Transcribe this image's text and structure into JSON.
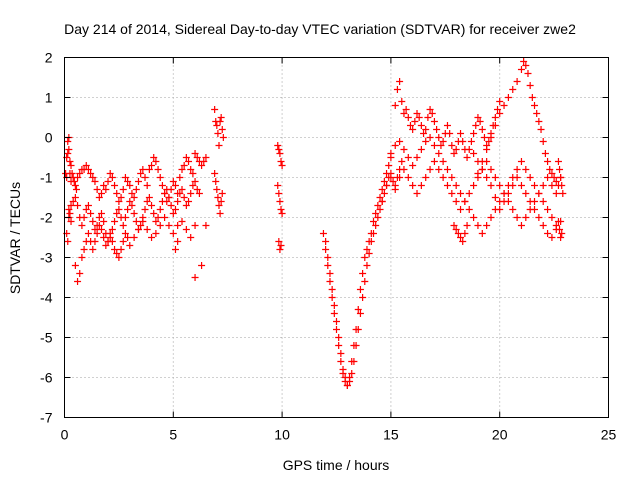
{
  "chart_data": {
    "type": "scatter",
    "title": "Day 214 of 2014, Sidereal Day-to-day VTEC variation (SDTVAR) for receiver zwe2",
    "xlabel": "GPS time / hours",
    "ylabel": "SDTVAR / TECUs",
    "xlim": [
      0,
      25
    ],
    "ylim": [
      -7,
      2
    ],
    "x_ticks": [
      0,
      5,
      10,
      15,
      20,
      25
    ],
    "y_ticks": [
      -7,
      -6,
      -5,
      -4,
      -3,
      -2,
      -1,
      0,
      1,
      2
    ],
    "x_tick_labels": [
      "0",
      "5",
      "10",
      "15",
      "20",
      "25"
    ],
    "y_tick_labels": [
      "-7",
      "-6",
      "-5",
      "-4",
      "-3",
      "-2",
      "-1",
      "0",
      "1",
      "2"
    ],
    "grid": true,
    "marker": "+",
    "color": "#ff0000",
    "series": [
      {
        "name": "zwe2",
        "x": [
          0.05,
          0.1,
          0.15,
          0.2,
          0.25,
          0.3,
          0.35,
          0.4,
          0.45,
          0.5,
          0.55,
          0.6,
          0.7,
          0.8,
          0.9,
          1.0,
          1.1,
          1.2,
          1.3,
          1.4,
          1.5,
          1.6,
          1.7,
          1.8,
          1.9,
          2.0,
          2.1,
          2.2,
          2.3,
          2.4,
          2.5,
          2.6,
          2.7,
          2.8,
          2.9,
          3.0,
          3.1,
          3.2,
          3.3,
          3.4,
          3.5,
          3.6,
          3.7,
          3.8,
          3.9,
          4.0,
          4.1,
          4.2,
          4.3,
          4.4,
          4.5,
          4.6,
          4.7,
          4.8,
          4.9,
          5.0,
          5.1,
          5.2,
          5.3,
          5.4,
          5.5,
          5.6,
          5.7,
          5.8,
          5.9,
          6.0,
          6.1,
          6.2,
          6.3,
          6.4,
          6.5,
          0.2,
          0.3,
          0.4,
          0.5,
          0.6,
          0.7,
          0.8,
          0.9,
          1.0,
          1.1,
          1.2,
          1.3,
          1.4,
          1.5,
          1.6,
          1.7,
          1.8,
          1.9,
          2.0,
          2.1,
          2.2,
          2.3,
          2.4,
          2.5,
          2.6,
          2.7,
          2.8,
          2.9,
          3.0,
          3.1,
          3.2,
          3.3,
          3.4,
          3.5,
          3.6,
          3.7,
          3.8,
          3.9,
          4.0,
          4.1,
          4.2,
          4.3,
          4.4,
          4.5,
          4.6,
          4.7,
          4.8,
          4.9,
          5.0,
          5.1,
          5.2,
          5.3,
          5.4,
          5.5,
          5.6,
          5.7,
          5.8,
          5.9,
          6.0,
          6.1,
          6.2,
          0.5,
          0.6,
          0.7,
          0.8,
          0.9,
          1.0,
          1.1,
          1.2,
          1.3,
          1.4,
          1.5,
          1.6,
          1.7,
          1.8,
          1.9,
          2.0,
          2.1,
          2.2,
          2.3,
          2.4,
          2.5,
          2.6,
          2.7,
          2.8,
          2.9,
          3.0,
          3.2,
          3.4,
          3.6,
          3.8,
          4.0,
          4.2,
          4.4,
          4.6,
          4.8,
          5.0,
          5.2,
          5.4,
          5.6,
          5.8,
          6.0,
          0.1,
          0.15,
          0.2,
          0.25,
          0.3,
          0.1,
          0.15,
          0.2,
          0.25,
          0.3,
          6.9,
          6.95,
          7.0,
          7.05,
          7.1,
          7.15,
          7.2,
          7.25,
          7.3,
          6.9,
          6.95,
          7.0,
          7.05,
          7.1,
          7.15,
          7.2,
          7.25,
          5.1,
          5.2,
          6.0,
          6.5,
          6.3,
          9.8,
          9.85,
          9.9,
          9.95,
          10.0,
          9.8,
          9.85,
          9.9,
          9.95,
          10.0,
          9.85,
          9.9,
          9.95,
          11.9,
          12.0,
          12.1,
          12.2,
          12.3,
          12.4,
          12.5,
          12.6,
          12.7,
          12.8,
          12.9,
          13.0,
          13.1,
          13.2,
          13.3,
          13.4,
          13.5,
          13.6,
          13.7,
          13.8,
          13.9,
          14.0,
          14.1,
          14.2,
          14.3,
          14.4,
          14.5,
          14.6,
          14.7,
          14.8,
          14.9,
          15.0,
          15.1,
          15.2,
          15.3,
          15.4,
          15.5,
          12.0,
          12.1,
          12.2,
          12.3,
          12.4,
          12.5,
          12.6,
          12.7,
          12.8,
          12.9,
          13.0,
          13.1,
          13.2,
          13.3,
          13.4,
          13.5,
          13.6,
          13.7,
          13.8,
          13.9,
          14.0,
          14.1,
          14.2,
          14.3,
          14.4,
          14.5,
          14.6,
          14.7,
          14.8,
          14.9,
          15.0,
          15.2,
          15.3,
          15.4,
          15.5,
          15.6,
          15.7,
          15.8,
          15.9,
          16.0,
          16.1,
          16.2,
          16.3,
          16.4,
          16.5,
          16.6,
          16.7,
          16.8,
          16.9,
          17.0,
          17.1,
          17.2,
          17.3,
          17.4,
          17.5,
          17.6,
          17.7,
          17.8,
          17.9,
          18.0,
          18.1,
          18.2,
          18.3,
          18.4,
          18.5,
          18.6,
          18.7,
          18.8,
          18.9,
          19.0,
          19.1,
          19.2,
          19.3,
          19.4,
          19.5,
          19.6,
          19.7,
          19.8,
          19.9,
          20.0,
          14.6,
          14.8,
          15.0,
          15.2,
          15.4,
          15.6,
          15.8,
          16.0,
          16.2,
          16.4,
          16.6,
          16.8,
          17.0,
          17.2,
          17.4,
          17.6,
          17.8,
          18.0,
          18.2,
          18.4,
          18.6,
          18.8,
          19.0,
          19.2,
          19.4,
          19.6,
          19.8,
          20.0,
          20.2,
          20.4,
          20.6,
          20.8,
          21.0,
          21.2,
          21.4,
          21.6,
          21.8,
          22.0,
          22.2,
          22.4,
          22.6,
          15.0,
          15.2,
          15.4,
          15.6,
          15.8,
          16.0,
          16.2,
          16.4,
          16.6,
          16.8,
          17.0,
          17.2,
          17.4,
          17.6,
          17.8,
          18.0,
          18.2,
          18.4,
          18.6,
          18.8,
          19.0,
          19.2,
          19.4,
          19.6,
          19.8,
          20.0,
          20.2,
          20.4,
          20.6,
          20.8,
          21.0,
          21.2,
          21.4,
          21.6,
          21.8,
          22.0,
          22.2,
          22.4,
          22.6,
          19.0,
          19.2,
          19.4,
          19.6,
          19.8,
          20.0,
          20.2,
          20.4,
          20.6,
          20.8,
          21.0,
          21.1,
          21.2,
          21.3,
          21.4,
          21.5,
          21.6,
          21.7,
          21.8,
          21.9,
          22.0,
          22.1,
          22.2,
          22.3,
          22.4,
          22.5,
          22.6,
          22.7,
          22.8,
          18.8,
          19.0,
          19.2,
          19.4,
          19.6,
          19.8,
          20.0,
          20.2,
          20.4,
          20.6,
          20.8,
          21.0,
          21.2,
          21.4,
          21.6,
          21.8,
          22.0,
          22.2,
          22.4,
          22.6,
          22.8,
          17.9,
          18.0,
          18.1,
          18.2,
          18.3,
          18.4,
          18.5,
          22.7,
          22.75,
          22.8,
          22.85,
          22.9,
          22.7,
          22.75,
          22.8,
          22.85
        ],
        "y": [
          -0.9,
          -1.0,
          -0.1,
          0.0,
          -0.9,
          -1.1,
          -0.9,
          -1.0,
          -1.1,
          -1.2,
          -1.3,
          -1.0,
          -0.9,
          -0.8,
          -0.8,
          -0.7,
          -0.8,
          -0.9,
          -1.0,
          -1.1,
          -1.3,
          -1.5,
          -1.4,
          -1.2,
          -1.3,
          -1.1,
          -0.9,
          -1.0,
          -1.2,
          -1.4,
          -1.6,
          -1.5,
          -1.3,
          -1.0,
          -1.1,
          -1.2,
          -1.4,
          -1.5,
          -1.3,
          -1.1,
          -0.9,
          -0.8,
          -1.0,
          -1.2,
          -0.8,
          -0.7,
          -0.5,
          -0.6,
          -0.8,
          -1.0,
          -1.2,
          -1.4,
          -1.6,
          -1.5,
          -1.3,
          -1.1,
          -1.2,
          -1.4,
          -1.0,
          -0.8,
          -0.7,
          -0.5,
          -0.6,
          -0.8,
          -0.9,
          -0.4,
          -0.5,
          -0.6,
          -0.7,
          -0.6,
          -0.5,
          -1.8,
          -1.7,
          -1.6,
          -1.5,
          -1.7,
          -2.0,
          -2.2,
          -2.0,
          -1.8,
          -1.7,
          -1.9,
          -2.1,
          -2.3,
          -2.2,
          -2.0,
          -1.9,
          -2.1,
          -2.4,
          -2.6,
          -2.5,
          -2.3,
          -2.1,
          -1.9,
          -1.8,
          -2.0,
          -2.2,
          -2.0,
          -1.8,
          -1.6,
          -1.7,
          -1.9,
          -2.1,
          -2.3,
          -2.2,
          -2.0,
          -1.8,
          -1.6,
          -1.5,
          -1.7,
          -1.9,
          -2.1,
          -2.0,
          -1.8,
          -1.6,
          -1.4,
          -1.3,
          -1.5,
          -1.7,
          -1.9,
          -1.8,
          -1.6,
          -1.4,
          -1.3,
          -1.5,
          -1.7,
          -1.6,
          -1.4,
          -1.2,
          -1.1,
          -1.3,
          -1.4,
          -3.2,
          -3.6,
          -3.4,
          -3.0,
          -2.8,
          -2.6,
          -2.4,
          -2.6,
          -2.8,
          -2.6,
          -2.4,
          -2.2,
          -2.3,
          -2.5,
          -2.7,
          -2.6,
          -2.4,
          -2.6,
          -2.8,
          -2.9,
          -3.0,
          -2.8,
          -2.6,
          -2.4,
          -2.5,
          -2.7,
          -2.5,
          -2.3,
          -2.1,
          -2.3,
          -2.5,
          -2.4,
          -2.2,
          -2.0,
          -2.2,
          -2.4,
          -2.2,
          -2.1,
          -2.3,
          -2.5,
          -2.2,
          -2.4,
          -2.6,
          -2.0,
          -1.9,
          -2.1,
          -0.5,
          -0.4,
          -0.3,
          -0.6,
          -0.7,
          0.7,
          0.4,
          0.3,
          0.1,
          -0.2,
          0.4,
          0.5,
          0.2,
          0.0,
          -0.9,
          -1.1,
          -1.3,
          -1.5,
          -1.7,
          -1.9,
          -1.6,
          -1.4,
          -2.8,
          -2.6,
          -3.5,
          -2.2,
          -3.2,
          -0.2,
          -0.3,
          -0.4,
          -0.6,
          -0.7,
          -1.2,
          -1.4,
          -1.6,
          -1.8,
          -1.9,
          -2.6,
          -2.8,
          -2.7,
          -2.4,
          -2.8,
          -3.2,
          -3.6,
          -4.0,
          -4.4,
          -4.8,
          -5.2,
          -5.6,
          -5.9,
          -6.1,
          -6.2,
          -6.1,
          -5.9,
          -5.6,
          -5.2,
          -4.8,
          -4.4,
          -4.0,
          -3.6,
          -3.2,
          -2.9,
          -2.6,
          -2.4,
          -2.2,
          -2.0,
          -1.8,
          -1.6,
          -1.4,
          -1.2,
          -1.0,
          -0.9,
          -1.1,
          -1.3,
          -1.0,
          -0.8,
          -0.6,
          -2.6,
          -3.0,
          -3.4,
          -3.8,
          -4.2,
          -4.6,
          -5.0,
          -5.4,
          -5.8,
          -6.0,
          -6.2,
          -6.0,
          -5.6,
          -5.2,
          -4.8,
          -4.3,
          -3.8,
          -3.4,
          -3.0,
          -2.8,
          -2.6,
          -2.4,
          -2.1,
          -1.9,
          -1.7,
          -1.5,
          -1.3,
          -1.1,
          -0.9,
          -0.7,
          -0.5,
          0.8,
          1.2,
          1.4,
          0.9,
          0.6,
          0.7,
          0.5,
          0.3,
          0.2,
          0.4,
          0.6,
          0.5,
          0.3,
          0.1,
          0.2,
          0.5,
          0.7,
          0.6,
          0.4,
          0.2,
          0.0,
          -0.2,
          -0.1,
          0.1,
          0.3,
          0.1,
          -0.2,
          -0.4,
          -0.3,
          -0.1,
          0.1,
          -0.1,
          -0.3,
          -0.5,
          -0.3,
          -0.1,
          0.1,
          0.3,
          0.5,
          0.4,
          0.2,
          0.0,
          -0.2,
          -0.1,
          0.1,
          0.3,
          0.5,
          0.7,
          0.9,
          -1.6,
          -1.2,
          -1.0,
          -1.2,
          -1.0,
          -0.8,
          -1.0,
          -1.2,
          -1.4,
          -1.2,
          -1.0,
          -0.8,
          -0.6,
          -0.8,
          -1.0,
          -1.2,
          -1.4,
          -1.6,
          -1.8,
          -1.6,
          -1.4,
          -1.2,
          -1.0,
          -0.8,
          -0.6,
          -0.8,
          -1.0,
          -1.2,
          -1.4,
          -1.6,
          -1.8,
          -2.0,
          -2.2,
          -2.0,
          -1.8,
          -1.6,
          -1.4,
          -1.2,
          -1.0,
          -1.2,
          -1.4,
          -0.4,
          -0.2,
          -0.1,
          -0.3,
          -0.5,
          -0.7,
          -0.5,
          -0.3,
          -0.1,
          0.0,
          -0.2,
          -0.4,
          -0.6,
          -0.8,
          -1.0,
          -1.2,
          -1.4,
          -1.6,
          -1.8,
          -2.0,
          -2.2,
          -2.4,
          -2.2,
          -2.0,
          -1.8,
          -1.6,
          -1.4,
          -1.2,
          -1.0,
          -0.8,
          -0.6,
          -0.8,
          -1.0,
          -1.2,
          -1.4,
          -1.6,
          -1.8,
          -2.0,
          -2.2,
          -0.9,
          -0.6,
          -0.3,
          0.0,
          0.3,
          0.6,
          0.8,
          1.0,
          1.2,
          1.4,
          1.7,
          1.9,
          1.8,
          1.6,
          1.3,
          1.0,
          0.8,
          0.6,
          0.4,
          0.2,
          -0.1,
          -0.4,
          -0.6,
          -0.8,
          -0.9,
          -1.0,
          -1.1,
          -1.2,
          -1.0,
          -0.4,
          -0.6,
          -0.8,
          -1.0,
          -1.2,
          -1.5,
          -1.8,
          -1.6,
          -1.4,
          -1.2,
          -1.0,
          -1.2,
          -1.4,
          -1.6,
          -1.8,
          -2.0,
          -2.2,
          -2.4,
          -2.5,
          -2.3,
          -2.1,
          -2.2,
          -2.3,
          -2.4,
          -2.5,
          -2.6,
          -2.4,
          -2.2,
          -0.6,
          -0.8,
          -1.0,
          -1.2,
          -1.4,
          -2.1,
          -2.3,
          -2.5,
          -2.4
        ]
      }
    ]
  }
}
